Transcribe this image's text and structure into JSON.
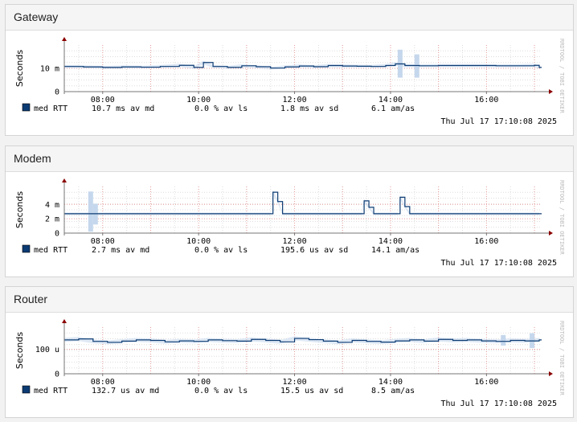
{
  "panels": [
    {
      "title": "Gateway",
      "ylabel": "Seconds",
      "watermark": "RRDTOOL / TOBI OETIKER",
      "legend": {
        "name": "med RTT",
        "avmd": "10.7 ms av md",
        "avls": "0.0 % av ls",
        "avsd": "1.8 ms av sd",
        "amas": "6.1   am/as"
      },
      "timestamp": "Thu Jul 17 17:10:08 2025",
      "chart_data": {
        "type": "line",
        "x_ticks": [
          "08:00",
          "10:00",
          "12:00",
          "14:00",
          "16:00"
        ],
        "x_range_hours": [
          7.2,
          17.15
        ],
        "y_range": [
          0,
          0.02
        ],
        "y_ticks": [
          {
            "value": 0,
            "label": "0"
          },
          {
            "value": 0.01,
            "label": "10 m"
          }
        ],
        "series": [
          {
            "name": "med RTT",
            "x_hours": [
              7.2,
              7.6,
              8.0,
              8.4,
              8.8,
              9.2,
              9.6,
              9.9,
              10.1,
              10.3,
              10.6,
              10.9,
              11.2,
              11.5,
              11.8,
              12.1,
              12.4,
              12.7,
              13.0,
              13.3,
              13.6,
              13.9,
              14.1,
              14.3,
              14.6,
              15.0,
              15.4,
              15.8,
              16.2,
              16.6,
              17.0,
              17.1
            ],
            "values": [
              0.0108,
              0.0106,
              0.0104,
              0.0106,
              0.0105,
              0.0108,
              0.0113,
              0.0104,
              0.0125,
              0.0108,
              0.0104,
              0.0111,
              0.0107,
              0.0101,
              0.0106,
              0.011,
              0.0107,
              0.0112,
              0.011,
              0.0109,
              0.0108,
              0.0112,
              0.0119,
              0.0112,
              0.0111,
              0.0112,
              0.0112,
              0.0112,
              0.0111,
              0.0111,
              0.0113,
              0.0104
            ]
          }
        ],
        "spread_bands": [
          {
            "x": 14.2,
            "low": 0.006,
            "high": 0.018
          },
          {
            "x": 14.55,
            "low": 0.006,
            "high": 0.016
          }
        ]
      }
    },
    {
      "title": "Modem",
      "ylabel": "Seconds",
      "watermark": "RRDTOOL / TOBI OETIKER",
      "legend": {
        "name": "med RTT",
        "avmd": "2.7 ms av md",
        "avls": "0.0 % av ls",
        "avsd": "195.6 us av sd",
        "amas": "14.1   am/as"
      },
      "timestamp": "Thu Jul 17 17:10:08 2025",
      "chart_data": {
        "type": "line",
        "x_ticks": [
          "08:00",
          "10:00",
          "12:00",
          "14:00",
          "16:00"
        ],
        "x_range_hours": [
          7.2,
          17.15
        ],
        "y_range": [
          0,
          0.0065
        ],
        "y_ticks": [
          {
            "value": 0,
            "label": "0"
          },
          {
            "value": 0.002,
            "label": "2 m"
          },
          {
            "value": 0.004,
            "label": "4 m"
          }
        ],
        "series": [
          {
            "name": "med RTT",
            "x_hours": [
              7.2,
              11.5,
              11.55,
              11.65,
              11.75,
              13.4,
              13.45,
              13.55,
              13.65,
              14.15,
              14.2,
              14.3,
              14.4,
              17.1
            ],
            "values": [
              0.0027,
              0.0027,
              0.0057,
              0.0044,
              0.0027,
              0.0027,
              0.0045,
              0.0036,
              0.0027,
              0.0027,
              0.005,
              0.0037,
              0.0027,
              0.0027
            ]
          }
        ],
        "spread_bands": [
          {
            "x": 7.75,
            "low": 0.0002,
            "high": 0.0058
          },
          {
            "x": 7.85,
            "low": 0.0012,
            "high": 0.0041
          }
        ]
      }
    },
    {
      "title": "Router",
      "ylabel": "Seconds",
      "watermark": "RRDTOOL / TOBI OETIKER",
      "legend": {
        "name": "med RTT",
        "avmd": "132.7 us av md",
        "avls": "0.0 % av ls",
        "avsd": "15.5 us av sd",
        "amas": "8.5   am/as"
      },
      "timestamp": "Thu Jul 17 17:10:08 2025",
      "chart_data": {
        "type": "line",
        "x_ticks": [
          "08:00",
          "10:00",
          "12:00",
          "14:00",
          "16:00"
        ],
        "x_range_hours": [
          7.2,
          17.15
        ],
        "y_range": [
          0,
          0.00019
        ],
        "y_ticks": [
          {
            "value": 0,
            "label": "0"
          },
          {
            "value": 0.0001,
            "label": "100 u"
          }
        ],
        "series": [
          {
            "name": "med RTT",
            "x_hours": [
              7.2,
              7.5,
              7.8,
              8.1,
              8.4,
              8.7,
              9.0,
              9.3,
              9.6,
              9.9,
              10.2,
              10.5,
              10.8,
              11.1,
              11.4,
              11.7,
              12.0,
              12.3,
              12.6,
              12.9,
              13.2,
              13.5,
              13.8,
              14.1,
              14.4,
              14.7,
              15.0,
              15.3,
              15.6,
              15.9,
              16.2,
              16.5,
              16.8,
              17.1
            ],
            "values": [
              0.000138,
              0.000142,
              0.000132,
              0.000128,
              0.000133,
              0.000138,
              0.000136,
              0.00013,
              0.000134,
              0.000132,
              0.000138,
              0.000135,
              0.000133,
              0.00014,
              0.000136,
              0.00013,
              0.000144,
              0.000139,
              0.000133,
              0.000128,
              0.000136,
              0.000132,
              0.000129,
              0.000134,
              0.000138,
              0.000133,
              0.00014,
              0.000136,
              0.000138,
              0.000134,
              0.000132,
              0.000136,
              0.000134,
              0.000138
            ]
          }
        ],
        "spread_bands": [
          {
            "x": 16.35,
            "low": 0.000115,
            "high": 0.000158
          },
          {
            "x": 16.95,
            "low": 0.000105,
            "high": 0.000165
          }
        ]
      }
    }
  ],
  "colors": {
    "line": "#0c3b73",
    "band": "#c5d7ec",
    "legend_swatch": "#0c3b73",
    "grid_minor": "#dddddd",
    "grid_major": "#e69a9a",
    "axis": "#777777",
    "arrow": "#8b0000",
    "watermark": "#bbbbbb"
  }
}
